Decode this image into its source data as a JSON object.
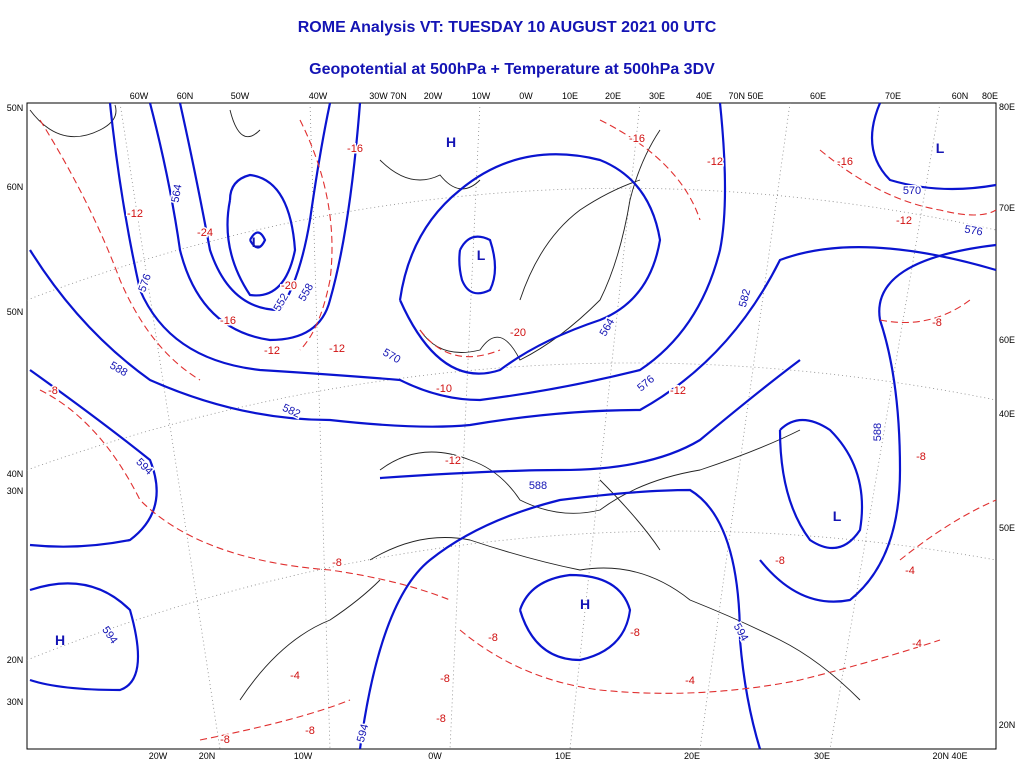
{
  "header": {
    "title": "ROME Analysis VT: TUESDAY 10 AUGUST 2021 00 UTC",
    "subtitle": "Geopotential at 500hPa + Temperature at 500hPa 3DV"
  },
  "top_labels": [
    "60W",
    "60N",
    "50W",
    "40W",
    "30W 70N",
    "20W",
    "10W",
    "0W",
    "10E",
    "20E",
    "30E",
    "40E",
    "70N 50E",
    "60E",
    "70E",
    "60N",
    "80E"
  ],
  "left_labels": [
    "50N",
    "60N",
    "50N",
    "40N",
    "30N",
    "20N",
    "30N"
  ],
  "right_labels": [
    "80E",
    "70E",
    "60E",
    "40E",
    "50E",
    "20N"
  ],
  "bottom_labels": [
    "20W",
    "20N",
    "10W",
    "0W",
    "10E",
    "20E",
    "30E",
    "20N 40E"
  ],
  "pressure_centers": [
    "H",
    "L",
    "L",
    "L",
    "H",
    "L",
    "H"
  ],
  "height_labels": [
    "564",
    "576",
    "552",
    "558",
    "570",
    "588",
    "582",
    "594",
    "588",
    "576",
    "582",
    "564",
    "570",
    "576",
    "588",
    "594",
    "594",
    "594"
  ],
  "temperature_labels": [
    "-16",
    "-16",
    "-12",
    "-16",
    "-12",
    "-12",
    "-24",
    "-20",
    "-16",
    "-12",
    "-12",
    "-20",
    "-10",
    "-12",
    "-8",
    "-12",
    "-8",
    "-8",
    "-8",
    "-4",
    "-8",
    "-8",
    "-4",
    "-4",
    "-4",
    "-8",
    "-8",
    "-8",
    "-8",
    "-8"
  ]
}
